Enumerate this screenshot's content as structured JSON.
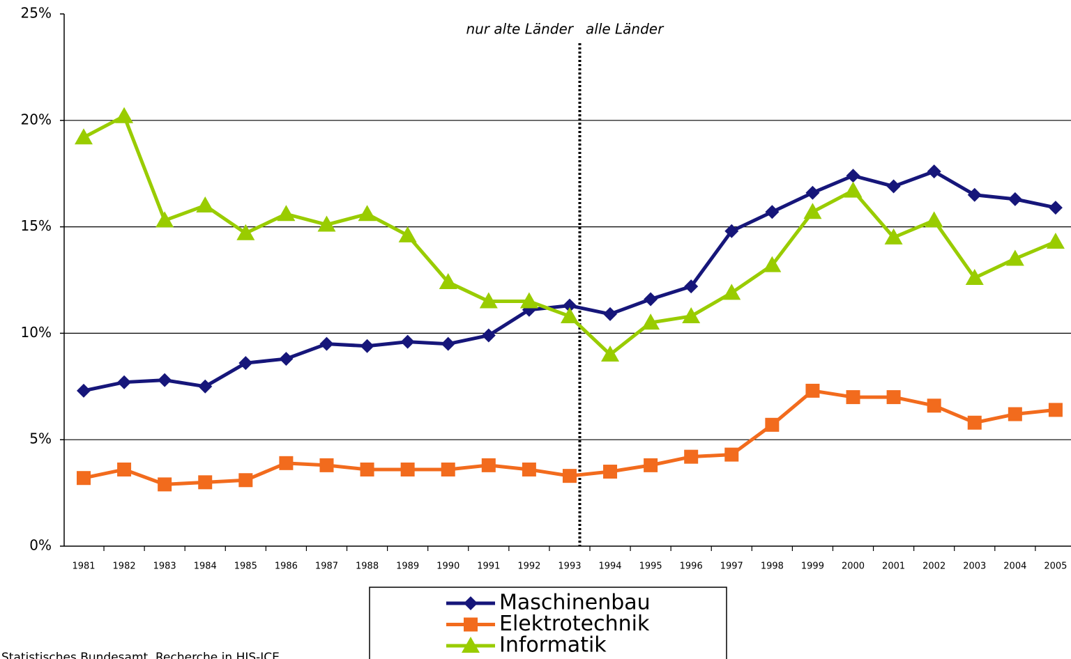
{
  "chart_data": {
    "type": "line",
    "categories": [
      "1981",
      "1982",
      "1983",
      "1984",
      "1985",
      "1986",
      "1987",
      "1988",
      "1989",
      "1990",
      "1991",
      "1992",
      "1993",
      "1994",
      "1995",
      "1996",
      "1997",
      "1998",
      "1999",
      "2000",
      "2001",
      "2002",
      "2003",
      "2004",
      "2005"
    ],
    "series": [
      {
        "name": "Maschinenbau",
        "color": "#16167a",
        "marker": "diamond",
        "values": [
          7.3,
          7.7,
          7.8,
          7.5,
          8.6,
          8.8,
          9.5,
          9.4,
          9.6,
          9.5,
          9.9,
          11.1,
          11.3,
          10.9,
          11.6,
          12.2,
          14.8,
          15.7,
          16.6,
          17.4,
          16.9,
          17.6,
          16.5,
          16.3,
          15.9
        ]
      },
      {
        "name": "Elektrotechnik",
        "color": "#f26b1d",
        "marker": "square",
        "values": [
          3.2,
          3.6,
          2.9,
          3.0,
          3.1,
          3.9,
          3.8,
          3.6,
          3.6,
          3.6,
          3.8,
          3.6,
          3.3,
          3.5,
          3.8,
          4.2,
          4.3,
          5.7,
          7.3,
          7.0,
          7.0,
          6.6,
          5.8,
          6.2,
          6.4
        ]
      },
      {
        "name": "Informatik",
        "color": "#99cc00",
        "marker": "triangle",
        "values": [
          19.2,
          20.2,
          15.3,
          16.0,
          14.7,
          15.6,
          15.1,
          15.6,
          14.6,
          12.4,
          11.5,
          11.5,
          10.8,
          9.0,
          10.5,
          10.8,
          11.9,
          13.2,
          15.7,
          16.7,
          14.5,
          15.3,
          12.6,
          13.5,
          14.3
        ]
      }
    ],
    "ylim": [
      0,
      25
    ],
    "yticks": [
      {
        "value": 0,
        "label": "0%"
      },
      {
        "value": 5,
        "label": "5%"
      },
      {
        "value": 10,
        "label": "10%"
      },
      {
        "value": 15,
        "label": "15%"
      },
      {
        "value": 20,
        "label": "20%"
      },
      {
        "value": 25,
        "label": "25%"
      }
    ],
    "grid": true,
    "annotations": [
      "nur alte Länder",
      "alle Länder"
    ],
    "source": "Statistisches Bundesamt, Recherche in HIS-ICE"
  }
}
